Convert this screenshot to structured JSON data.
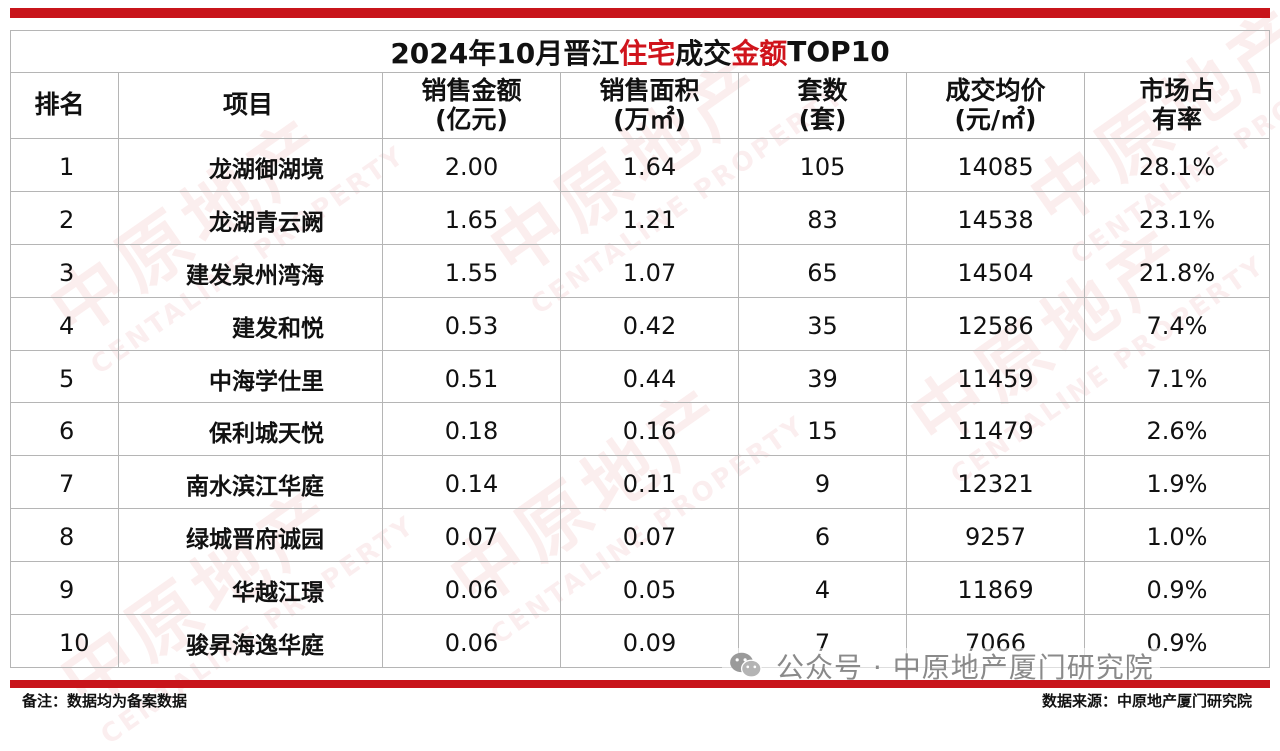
{
  "title": {
    "prefix": "2024年10月晋江",
    "hl1": "住宅",
    "mid": "成交",
    "hl2": "金额",
    "suffix": "TOP10"
  },
  "colors": {
    "accent_red": "#c8151b",
    "title_highlight": "#d0141c",
    "grid": "#b5b5b5"
  },
  "headers": [
    {
      "l1": "排名",
      "l2": ""
    },
    {
      "l1": "项目",
      "l2": ""
    },
    {
      "l1": "销售金额",
      "l2": "(亿元)"
    },
    {
      "l1": "销售面积",
      "l2": "(万㎡)"
    },
    {
      "l1": "套数",
      "l2": "(套)"
    },
    {
      "l1": "成交均价",
      "l2": "(元/㎡)"
    },
    {
      "l1": "市场占",
      "l2": "有率"
    }
  ],
  "rows": [
    {
      "rank": "1",
      "name": "龙湖御湖境",
      "amount": "2.00",
      "area": "1.64",
      "units": "105",
      "price": "14085",
      "share": "28.1%"
    },
    {
      "rank": "2",
      "name": "龙湖青云阙",
      "amount": "1.65",
      "area": "1.21",
      "units": "83",
      "price": "14538",
      "share": "23.1%"
    },
    {
      "rank": "3",
      "name": "建发泉州湾海",
      "amount": "1.55",
      "area": "1.07",
      "units": "65",
      "price": "14504",
      "share": "21.8%"
    },
    {
      "rank": "4",
      "name": "建发和悦",
      "amount": "0.53",
      "area": "0.42",
      "units": "35",
      "price": "12586",
      "share": "7.4%"
    },
    {
      "rank": "5",
      "name": "中海学仕里",
      "amount": "0.51",
      "area": "0.44",
      "units": "39",
      "price": "11459",
      "share": "7.1%"
    },
    {
      "rank": "6",
      "name": "保利城天悦",
      "amount": "0.18",
      "area": "0.16",
      "units": "15",
      "price": "11479",
      "share": "2.6%"
    },
    {
      "rank": "7",
      "name": "南水滨江华庭",
      "amount": "0.14",
      "area": "0.11",
      "units": "9",
      "price": "12321",
      "share": "1.9%"
    },
    {
      "rank": "8",
      "name": "绿城晋府诚园",
      "amount": "0.07",
      "area": "0.07",
      "units": "6",
      "price": "9257",
      "share": "1.0%"
    },
    {
      "rank": "9",
      "name": "华越江璟",
      "amount": "0.06",
      "area": "0.05",
      "units": "4",
      "price": "11869",
      "share": "0.9%"
    },
    {
      "rank": "10",
      "name": "骏昇海逸华庭",
      "amount": "0.06",
      "area": "0.09",
      "units": "7",
      "price": "7066",
      "share": "0.9%"
    }
  ],
  "footer": {
    "note": "备注：数据均为备案数据",
    "source": "数据来源：中原地产厦门研究院",
    "wechat": "公众号 · 中原地产厦门研究院",
    "wechat_icon": "wechat-icon"
  },
  "watermark": {
    "cn": "中原地产",
    "en": "CENTALINE PROPERTY"
  }
}
